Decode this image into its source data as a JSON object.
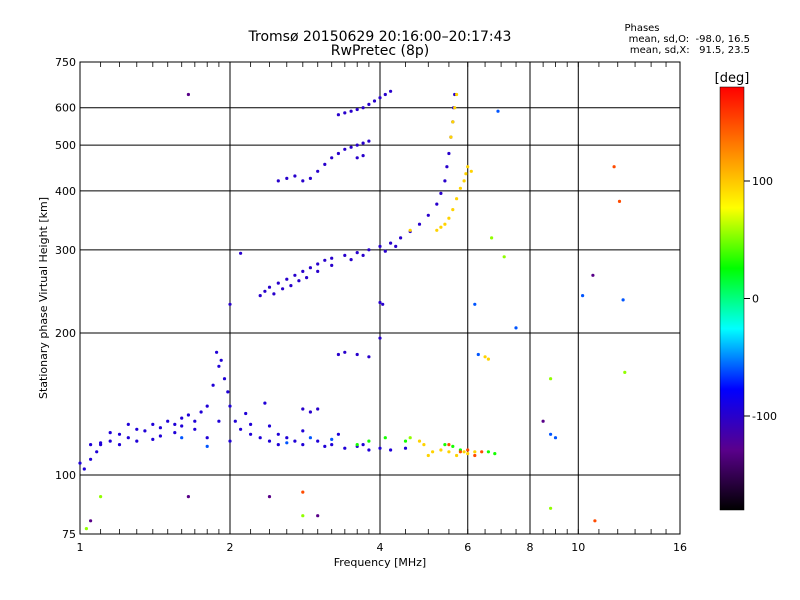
{
  "chart_data": {
    "type": "scatter",
    "title": "Tromsø 20150629 20:16:00–20:17:43",
    "subtitle": "RwPretec (8p)",
    "xlabel": "Frequency [MHz]",
    "ylabel": "Stationary phase Virtual Height [km]",
    "x_scale": "log",
    "y_scale": "log",
    "xlim": [
      1,
      16
    ],
    "ylim": [
      75,
      750
    ],
    "x_ticks": [
      {
        "value": 1,
        "label": "1"
      },
      {
        "value": 2,
        "label": "2"
      },
      {
        "value": 4,
        "label": "4"
      },
      {
        "value": 6,
        "label": "6"
      },
      {
        "value": 8,
        "label": "8"
      },
      {
        "value": 10,
        "label": "10"
      },
      {
        "value": 16,
        "label": "16"
      }
    ],
    "y_ticks": [
      {
        "value": 75,
        "label": "75"
      },
      {
        "value": 100,
        "label": "100"
      },
      {
        "value": 200,
        "label": "200"
      },
      {
        "value": 300,
        "label": "300"
      },
      {
        "value": 400,
        "label": "400"
      },
      {
        "value": 500,
        "label": "500"
      },
      {
        "value": 600,
        "label": "600"
      },
      {
        "value": 750,
        "label": "750"
      }
    ],
    "grid": true,
    "phases": {
      "heading": "Phases",
      "line_o": "mean, sd,O:  -98.0, 16.5",
      "line_x": "mean, sd,X:   91.5, 23.5"
    },
    "colorbar": {
      "label": "[deg]",
      "range": [
        -180,
        180
      ],
      "ticks": [
        {
          "value": 100,
          "label": "100"
        },
        {
          "value": 0,
          "label": "0"
        },
        {
          "value": -100,
          "label": "-100"
        }
      ],
      "colormap": [
        "#000000",
        "#5a008c",
        "#0000ff",
        "#00ffff",
        "#00ff00",
        "#ffff00",
        "#ff8000",
        "#ff0000"
      ]
    },
    "series": [
      {
        "phase": -95,
        "points": [
          [
            1.0,
            106
          ],
          [
            1.02,
            103
          ],
          [
            1.05,
            108
          ],
          [
            1.08,
            112
          ],
          [
            1.1,
            116
          ],
          [
            1.15,
            118
          ],
          [
            1.2,
            122
          ],
          [
            1.25,
            120
          ],
          [
            1.3,
            125
          ],
          [
            1.35,
            124
          ],
          [
            1.4,
            128
          ],
          [
            1.45,
            126
          ],
          [
            1.5,
            130
          ],
          [
            1.55,
            128
          ],
          [
            1.6,
            132
          ],
          [
            1.65,
            134
          ],
          [
            1.7,
            130
          ],
          [
            1.75,
            136
          ],
          [
            1.8,
            140
          ],
          [
            1.85,
            155
          ],
          [
            1.9,
            170
          ],
          [
            1.95,
            160
          ],
          [
            2.0,
            140
          ],
          [
            2.05,
            130
          ],
          [
            2.1,
            125
          ],
          [
            2.2,
            122
          ],
          [
            2.3,
            120
          ],
          [
            2.4,
            118
          ],
          [
            2.5,
            122
          ],
          [
            2.6,
            120
          ],
          [
            2.7,
            118
          ],
          [
            2.8,
            116
          ],
          [
            3.0,
            118
          ],
          [
            3.2,
            116
          ],
          [
            3.4,
            114
          ],
          [
            3.6,
            115
          ],
          [
            3.8,
            113
          ],
          [
            4.0,
            114
          ],
          [
            4.2,
            113
          ],
          [
            4.5,
            114
          ],
          [
            1.05,
            116
          ],
          [
            1.15,
            123
          ],
          [
            1.25,
            128
          ],
          [
            1.4,
            119
          ],
          [
            1.55,
            123
          ],
          [
            1.7,
            125
          ],
          [
            1.9,
            130
          ],
          [
            2.2,
            128
          ],
          [
            2.4,
            127
          ],
          [
            2.8,
            124
          ],
          [
            3.3,
            122
          ],
          [
            1.88,
            182
          ],
          [
            1.92,
            175
          ],
          [
            1.98,
            150
          ],
          [
            2.15,
            135
          ],
          [
            2.35,
            142
          ],
          [
            1.1,
            117
          ],
          [
            1.2,
            116
          ],
          [
            1.3,
            118
          ],
          [
            1.45,
            121
          ],
          [
            1.6,
            127
          ],
          [
            1.8,
            120
          ],
          [
            2.0,
            118
          ],
          [
            2.5,
            116
          ],
          [
            3.1,
            115
          ],
          [
            3.7,
            116
          ]
        ]
      },
      {
        "phase": -100,
        "points": [
          [
            2.3,
            240
          ],
          [
            2.35,
            245
          ],
          [
            2.4,
            250
          ],
          [
            2.5,
            255
          ],
          [
            2.6,
            260
          ],
          [
            2.7,
            265
          ],
          [
            2.8,
            270
          ],
          [
            2.9,
            275
          ],
          [
            3.0,
            280
          ],
          [
            3.1,
            285
          ],
          [
            3.2,
            288
          ],
          [
            3.4,
            292
          ],
          [
            3.6,
            296
          ],
          [
            3.8,
            300
          ],
          [
            4.0,
            305
          ],
          [
            4.2,
            310
          ],
          [
            4.4,
            318
          ],
          [
            4.6,
            328
          ],
          [
            4.8,
            340
          ],
          [
            5.0,
            355
          ],
          [
            5.2,
            375
          ],
          [
            5.3,
            395
          ],
          [
            5.4,
            420
          ],
          [
            5.45,
            450
          ],
          [
            5.5,
            480
          ],
          [
            5.55,
            520
          ],
          [
            5.6,
            560
          ],
          [
            5.62,
            600
          ],
          [
            5.65,
            640
          ],
          [
            2.45,
            242
          ],
          [
            2.55,
            248
          ],
          [
            2.65,
            252
          ],
          [
            2.75,
            258
          ],
          [
            2.85,
            262
          ],
          [
            3.0,
            270
          ],
          [
            3.2,
            278
          ],
          [
            3.5,
            286
          ],
          [
            3.7,
            292
          ],
          [
            4.1,
            298
          ],
          [
            4.3,
            305
          ],
          [
            2.5,
            420
          ],
          [
            2.6,
            425
          ],
          [
            2.7,
            430
          ],
          [
            2.8,
            420
          ],
          [
            2.9,
            425
          ],
          [
            3.0,
            440
          ],
          [
            3.1,
            455
          ],
          [
            3.2,
            470
          ],
          [
            3.3,
            480
          ],
          [
            3.4,
            490
          ],
          [
            3.5,
            495
          ],
          [
            3.6,
            500
          ],
          [
            3.7,
            505
          ],
          [
            3.8,
            510
          ],
          [
            3.6,
            470
          ],
          [
            3.7,
            475
          ],
          [
            3.3,
            580
          ],
          [
            3.4,
            585
          ],
          [
            3.5,
            590
          ],
          [
            3.6,
            595
          ],
          [
            3.7,
            600
          ],
          [
            3.8,
            610
          ],
          [
            3.9,
            620
          ],
          [
            4.0,
            630
          ],
          [
            4.1,
            640
          ],
          [
            4.2,
            650
          ],
          [
            3.3,
            180
          ],
          [
            3.4,
            182
          ],
          [
            3.6,
            180
          ],
          [
            3.8,
            178
          ],
          [
            2.8,
            138
          ],
          [
            2.9,
            136
          ],
          [
            3.0,
            138
          ],
          [
            4.0,
            195
          ],
          [
            4.0,
            232
          ],
          [
            4.05,
            230
          ],
          [
            2.0,
            230
          ],
          [
            2.1,
            295
          ]
        ]
      },
      {
        "phase": 95,
        "points": [
          [
            5.0,
            110
          ],
          [
            5.1,
            112
          ],
          [
            5.3,
            113
          ],
          [
            5.5,
            112
          ],
          [
            5.7,
            110
          ],
          [
            5.9,
            112
          ],
          [
            6.0,
            111
          ],
          [
            6.2,
            112
          ],
          [
            6.5,
            178
          ],
          [
            6.6,
            176
          ],
          [
            5.2,
            330
          ],
          [
            5.3,
            335
          ],
          [
            5.4,
            340
          ],
          [
            5.5,
            350
          ],
          [
            5.6,
            365
          ],
          [
            5.7,
            385
          ],
          [
            5.8,
            405
          ],
          [
            5.9,
            420
          ],
          [
            5.95,
            435
          ],
          [
            6.0,
            450
          ],
          [
            5.55,
            520
          ],
          [
            5.6,
            560
          ],
          [
            5.65,
            600
          ],
          [
            5.7,
            640
          ],
          [
            6.1,
            440
          ],
          [
            4.8,
            118
          ],
          [
            4.9,
            116
          ],
          [
            4.6,
            330
          ]
        ]
      },
      {
        "phase": 30,
        "points": [
          [
            3.6,
            116
          ],
          [
            3.8,
            118
          ],
          [
            4.1,
            120
          ],
          [
            4.5,
            118
          ],
          [
            6.6,
            112
          ],
          [
            6.8,
            111
          ],
          [
            5.6,
            115
          ],
          [
            5.4,
            116
          ],
          [
            5.8,
            113
          ]
        ]
      },
      {
        "phase": 150,
        "points": [
          [
            5.8,
            112
          ],
          [
            6.0,
            113
          ],
          [
            6.2,
            110
          ],
          [
            6.4,
            112
          ],
          [
            5.5,
            116
          ],
          [
            11.8,
            450
          ],
          [
            12.1,
            380
          ],
          [
            10.8,
            80
          ],
          [
            2.8,
            92
          ]
        ]
      },
      {
        "phase": -60,
        "points": [
          [
            8.8,
            122
          ],
          [
            9.0,
            120
          ],
          [
            10.2,
            240
          ],
          [
            12.3,
            235
          ],
          [
            1.6,
            120
          ],
          [
            1.8,
            115
          ],
          [
            2.6,
            117
          ],
          [
            2.9,
            120
          ],
          [
            3.2,
            119
          ],
          [
            7.5,
            205
          ],
          [
            6.9,
            590
          ],
          [
            6.3,
            180
          ],
          [
            6.2,
            230
          ]
        ]
      },
      {
        "phase": 55,
        "points": [
          [
            1.1,
            90
          ],
          [
            1.03,
            77
          ],
          [
            2.8,
            82
          ],
          [
            8.8,
            85
          ],
          [
            8.8,
            160
          ],
          [
            12.4,
            165
          ],
          [
            6.7,
            318
          ],
          [
            7.1,
            290
          ],
          [
            4.6,
            120
          ]
        ]
      },
      {
        "phase": -130,
        "points": [
          [
            1.65,
            640
          ],
          [
            1.65,
            90
          ],
          [
            3.0,
            82
          ],
          [
            1.05,
            80
          ],
          [
            2.4,
            90
          ],
          [
            8.5,
            130
          ],
          [
            10.7,
            265
          ]
        ]
      }
    ]
  }
}
